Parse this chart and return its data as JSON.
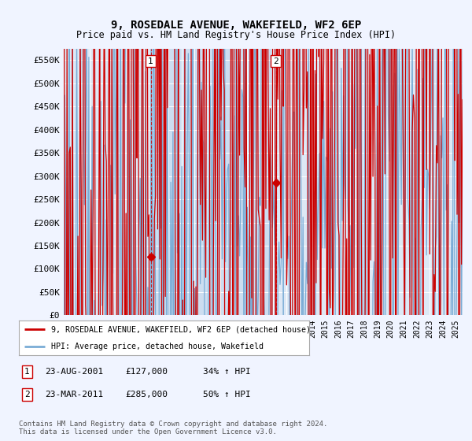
{
  "title": "9, ROSEDALE AVENUE, WAKEFIELD, WF2 6EP",
  "subtitle": "Price paid vs. HM Land Registry's House Price Index (HPI)",
  "ylabel_ticks": [
    "£0",
    "£50K",
    "£100K",
    "£150K",
    "£200K",
    "£250K",
    "£300K",
    "£350K",
    "£400K",
    "£450K",
    "£500K",
    "£550K"
  ],
  "ytick_values": [
    0,
    50000,
    100000,
    150000,
    200000,
    250000,
    300000,
    350000,
    400000,
    450000,
    500000,
    550000
  ],
  "ylim": [
    0,
    575000
  ],
  "xlim_start": 1995.0,
  "xlim_end": 2025.5,
  "background_color": "#f0f4ff",
  "plot_bg_color": "#dde8f5",
  "grid_color": "#ffffff",
  "shade_color": "#ccddf0",
  "red_line_color": "#cc0000",
  "blue_line_color": "#7aacd6",
  "sale1_date": 2001.65,
  "sale1_price": 127000,
  "sale2_date": 2011.22,
  "sale2_price": 285000,
  "legend1": "9, ROSEDALE AVENUE, WAKEFIELD, WF2 6EP (detached house)",
  "legend2": "HPI: Average price, detached house, Wakefield",
  "ann1_text": "23-AUG-2001",
  "ann1_price": "£127,000",
  "ann1_hpi": "34% ↑ HPI",
  "ann2_text": "23-MAR-2011",
  "ann2_price": "£285,000",
  "ann2_hpi": "50% ↑ HPI",
  "footer": "Contains HM Land Registry data © Crown copyright and database right 2024.\nThis data is licensed under the Open Government Licence v3.0.",
  "title_fontsize": 10,
  "subtitle_fontsize": 8.5
}
